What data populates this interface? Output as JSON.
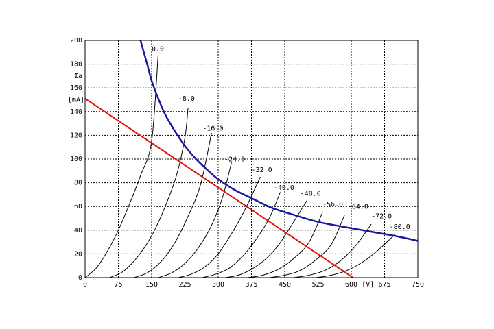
{
  "chart_data": {
    "type": "line",
    "title": "",
    "xlabel": "[V]",
    "ylabel_top": "Ia",
    "ylabel_unit": "[mA]",
    "xlim": [
      0,
      750
    ],
    "ylim": [
      0,
      200
    ],
    "x_ticks": [
      0,
      75,
      150,
      225,
      300,
      375,
      450,
      525,
      600,
      675,
      750
    ],
    "x_tick_labels": [
      "0",
      "75",
      "150",
      "225",
      "300",
      "375",
      "450",
      "525",
      "600",
      "675",
      "750"
    ],
    "y_ticks": [
      0,
      20,
      40,
      60,
      80,
      100,
      120,
      140,
      160,
      180,
      200
    ],
    "y_tick_labels": [
      "0",
      "20",
      "40",
      "60",
      "80",
      "100",
      "120",
      "140",
      "160",
      "180",
      "200"
    ],
    "grid": true,
    "characteristic_curves": [
      {
        "label": "0.0",
        "x": [
          0,
          25,
          50,
          75,
          100,
          125,
          150,
          165
        ],
        "y": [
          0,
          8,
          22,
          40,
          62,
          86,
          115,
          190
        ]
      },
      {
        "label": "-8.0",
        "x": [
          55,
          85,
          115,
          145,
          175,
          205,
          225,
          232
        ],
        "y": [
          0,
          5,
          16,
          32,
          55,
          85,
          118,
          143
        ]
      },
      {
        "label": "-16.0",
        "x": [
          110,
          140,
          170,
          200,
          230,
          260,
          285
        ],
        "y": [
          0,
          4,
          13,
          28,
          50,
          78,
          122
        ]
      },
      {
        "label": "-24.0",
        "x": [
          165,
          195,
          225,
          255,
          285,
          310,
          330
        ],
        "y": [
          0,
          4,
          12,
          25,
          44,
          68,
          97
        ]
      },
      {
        "label": "-32.0",
        "x": [
          210,
          240,
          270,
          300,
          330,
          360,
          395
        ],
        "y": [
          0,
          3,
          9,
          20,
          37,
          57,
          85
        ]
      },
      {
        "label": "-40.0",
        "x": [
          265,
          295,
          325,
          355,
          385,
          415,
          440
        ],
        "y": [
          0,
          3,
          8,
          18,
          32,
          50,
          72
        ]
      },
      {
        "label": "-48.0",
        "x": [
          315,
          345,
          375,
          405,
          435,
          465,
          500
        ],
        "y": [
          0,
          2,
          7,
          15,
          27,
          44,
          65
        ]
      },
      {
        "label": "-56.0",
        "x": [
          365,
          400,
          435,
          470,
          505,
          535
        ],
        "y": [
          0,
          2,
          7,
          16,
          30,
          55
        ]
      },
      {
        "label": "-64.0",
        "x": [
          415,
          450,
          485,
          520,
          555,
          585
        ],
        "y": [
          0,
          2,
          6,
          15,
          28,
          53
        ]
      },
      {
        "label": "-72.0",
        "x": [
          470,
          505,
          540,
          575,
          610,
          645
        ],
        "y": [
          0,
          2,
          6,
          14,
          27,
          45
        ]
      },
      {
        "label": "-80.0",
        "x": [
          520,
          555,
          590,
          625,
          660,
          700
        ],
        "y": [
          0,
          2,
          6,
          13,
          23,
          37
        ]
      }
    ],
    "curve_labels_at": [
      {
        "label": "0.0",
        "x": 150,
        "y": 191
      },
      {
        "label": "-8.0",
        "x": 210,
        "y": 149
      },
      {
        "label": "-16.0",
        "x": 265,
        "y": 124
      },
      {
        "label": "-24.0",
        "x": 314,
        "y": 98
      },
      {
        "label": "-32.0",
        "x": 375,
        "y": 89
      },
      {
        "label": "-40.0",
        "x": 425,
        "y": 74
      },
      {
        "label": "-48.0",
        "x": 485,
        "y": 69
      },
      {
        "label": "-56.0",
        "x": 535,
        "y": 60
      },
      {
        "label": "-64.0",
        "x": 592,
        "y": 58
      },
      {
        "label": "-72.0",
        "x": 645,
        "y": 50
      },
      {
        "label": "-80.0",
        "x": 686,
        "y": 41
      }
    ],
    "power_limit_curve": {
      "color": "#1a1aa0",
      "x": [
        125,
        140,
        150,
        165,
        180,
        200,
        225,
        250,
        275,
        300,
        337,
        375,
        420,
        470,
        525,
        580,
        640,
        700,
        750
      ],
      "y": [
        200,
        180,
        166,
        151,
        138,
        125,
        111,
        100,
        91,
        83,
        74,
        67,
        59,
        53,
        47,
        43,
        39,
        35,
        31
      ]
    },
    "load_line": {
      "color": "#e01010",
      "x": [
        0,
        604
      ],
      "y": [
        151,
        0
      ]
    }
  }
}
